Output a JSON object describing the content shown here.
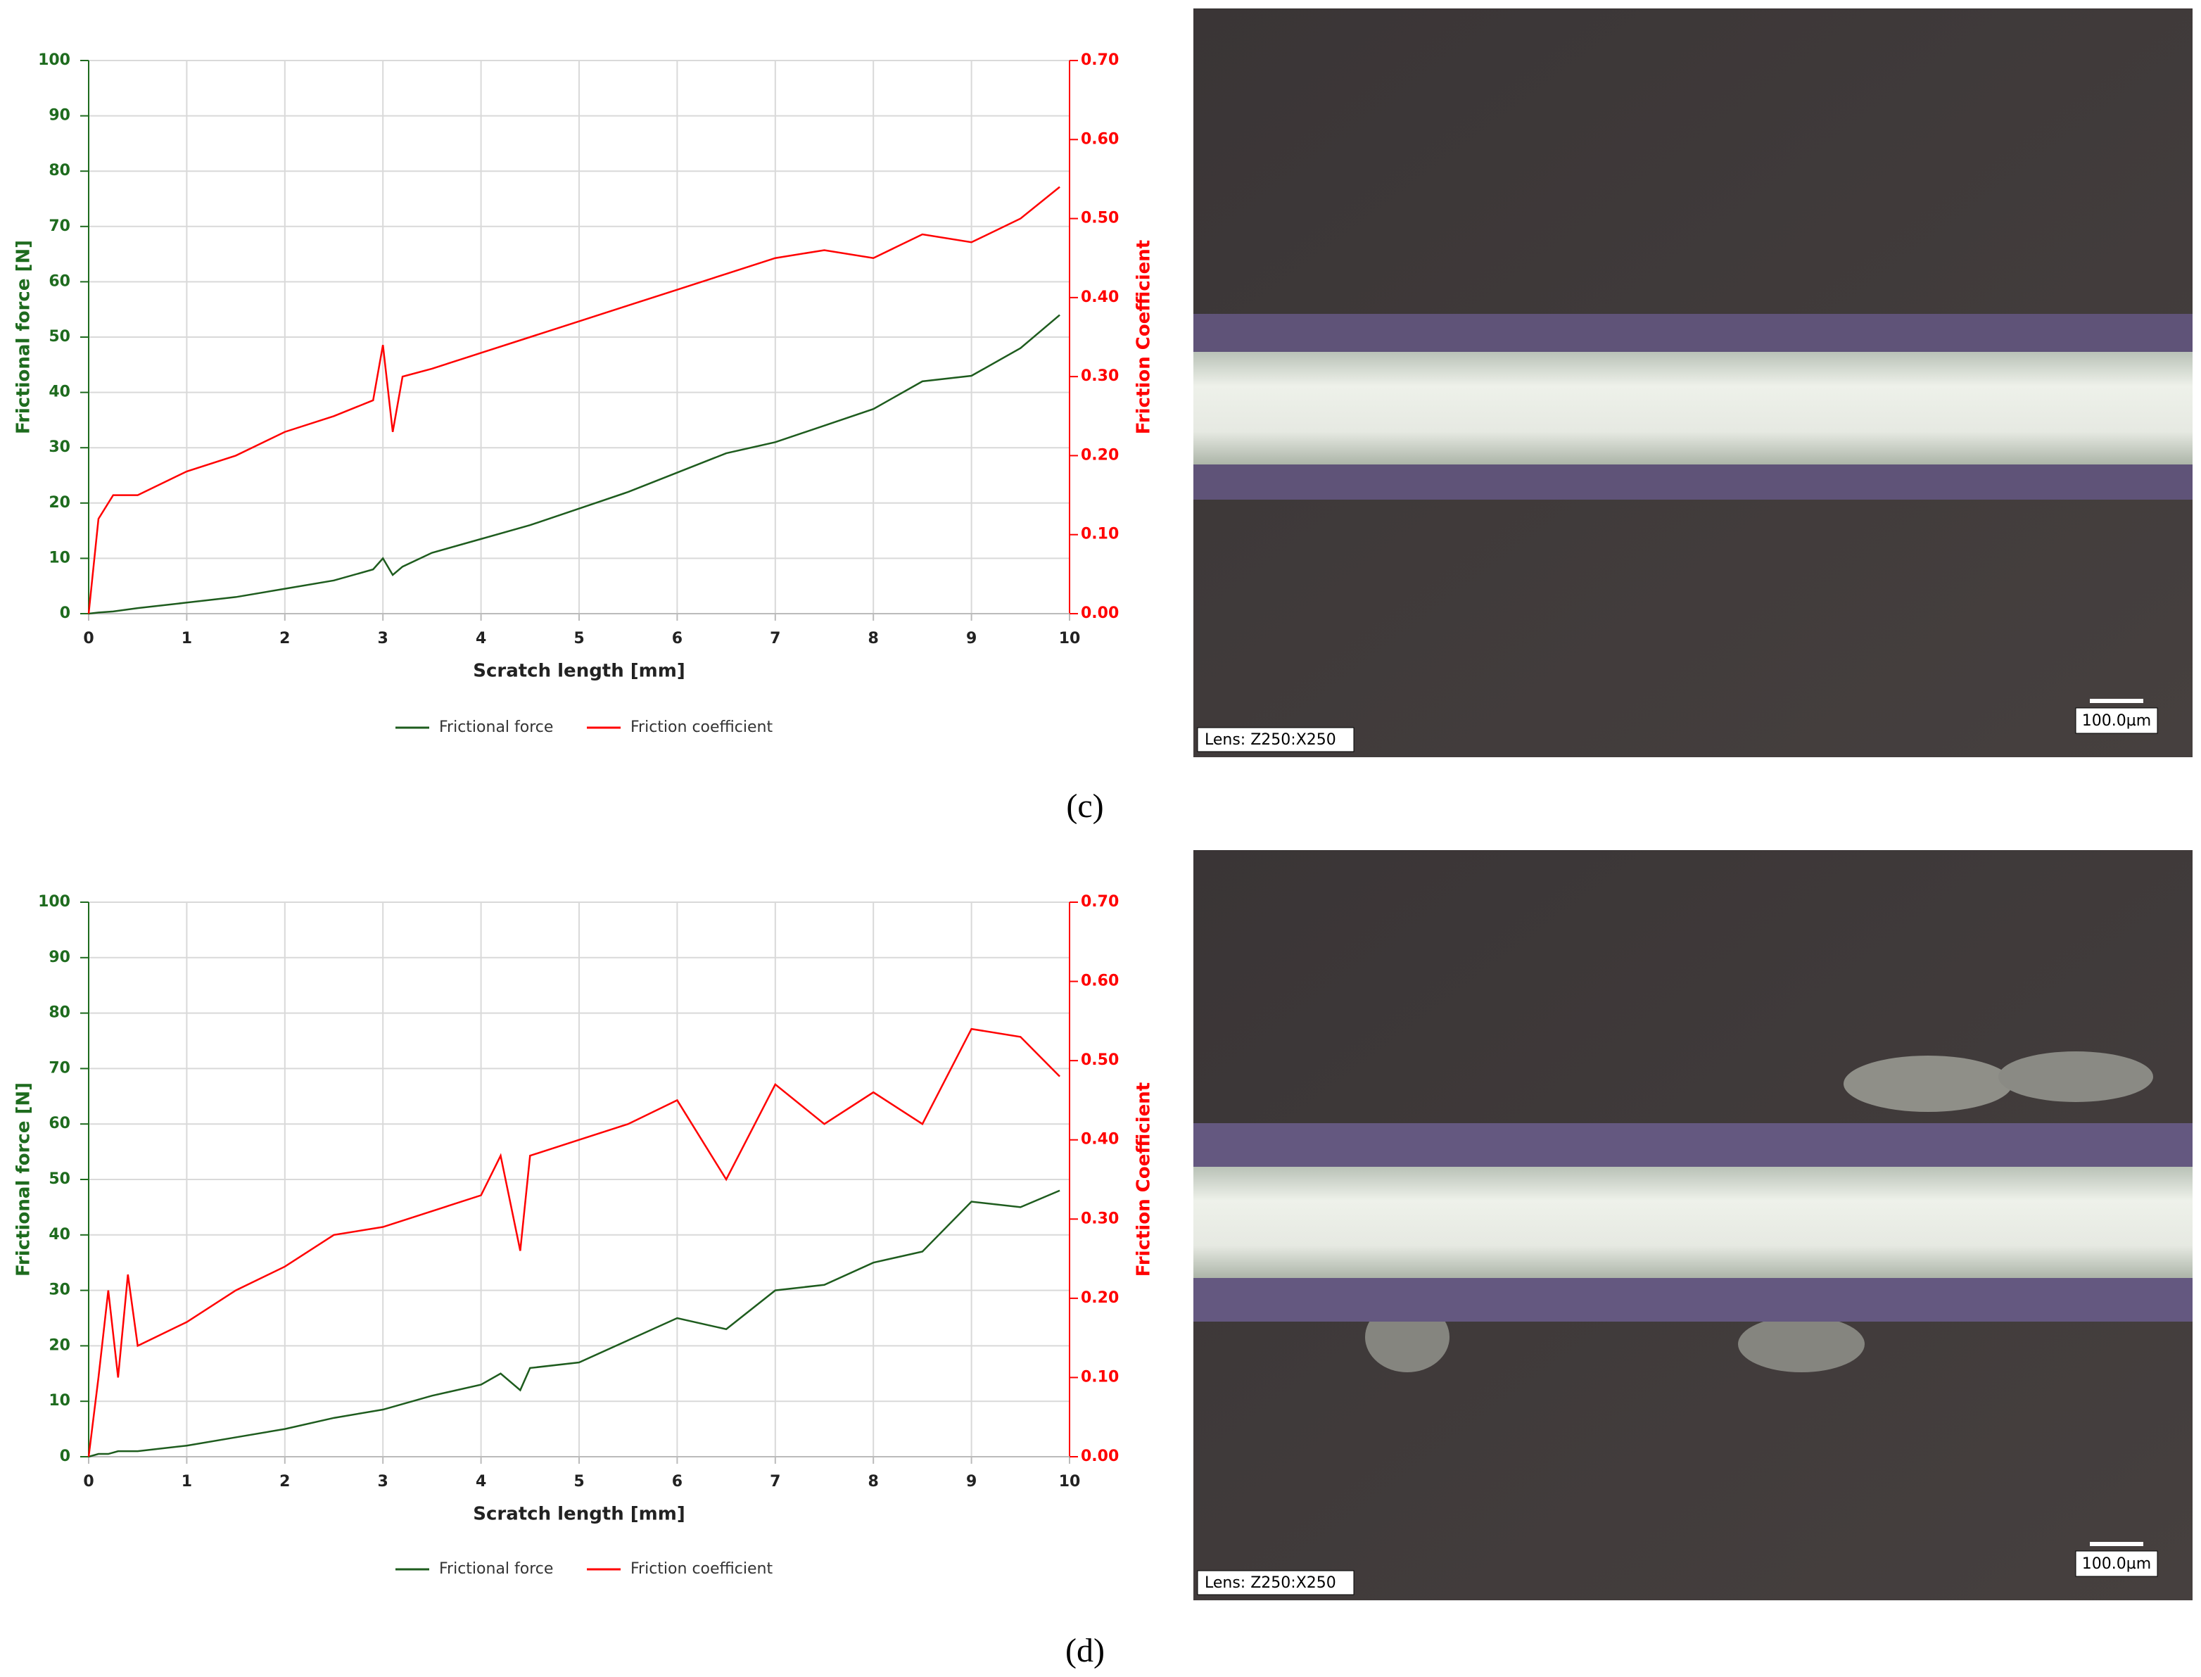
{
  "chart_data": [
    {
      "type": "line",
      "x_label": "Scratch length [mm]",
      "y_label": "Frictional force [N]",
      "y2_label": "Friction Coefficient",
      "x": [
        0,
        0.1,
        0.25,
        0.5,
        1,
        1.5,
        2,
        2.5,
        2.9,
        3,
        3.1,
        3.2,
        3.5,
        4,
        4.5,
        5,
        5.5,
        6,
        6.5,
        7,
        7.5,
        8,
        8.5,
        9,
        9.5,
        9.9
      ],
      "series": [
        {
          "name": "Frictional force",
          "color": "#1e5c1e",
          "values": [
            0,
            0.2,
            0.4,
            1,
            2,
            3,
            4.5,
            6,
            8,
            10,
            7,
            8.5,
            11,
            13.5,
            16,
            19,
            22,
            25.5,
            29,
            31,
            34,
            37,
            42,
            43,
            48,
            54
          ]
        },
        {
          "name": "Friction coefficient",
          "color": "#ff0000",
          "axis": "y2",
          "values": [
            0,
            0.12,
            0.15,
            0.15,
            0.18,
            0.2,
            0.23,
            0.25,
            0.27,
            0.34,
            0.23,
            0.3,
            0.31,
            0.33,
            0.35,
            0.37,
            0.39,
            0.41,
            0.43,
            0.45,
            0.46,
            0.45,
            0.48,
            0.47,
            0.5,
            0.54
          ]
        }
      ],
      "xlim": [
        0,
        10
      ],
      "xticks": [
        0,
        1,
        2,
        3,
        4,
        5,
        6,
        7,
        8,
        9,
        10
      ],
      "ylim": [
        0,
        100
      ],
      "yticks": [
        0,
        10,
        20,
        30,
        40,
        50,
        60,
        70,
        80,
        90,
        100
      ],
      "y2lim": [
        0,
        0.7
      ],
      "y2ticks": [
        {
          "value": 0,
          "label": "0.00"
        },
        {
          "value": 0.1,
          "label": "0.10"
        },
        {
          "value": 0.2,
          "label": "0.20"
        },
        {
          "value": 0.3,
          "label": "0.30"
        },
        {
          "value": 0.4,
          "label": "0.40"
        },
        {
          "value": 0.5,
          "label": "0.50"
        },
        {
          "value": 0.6,
          "label": "0.60"
        },
        {
          "value": 0.7,
          "label": "0.70"
        }
      ],
      "grid": true,
      "legend": "bottom"
    },
    {
      "type": "line",
      "x_label": "Scratch length [mm]",
      "y_label": "Frictional force [N]",
      "y2_label": "Friction Coefficient",
      "x": [
        0,
        0.1,
        0.2,
        0.3,
        0.4,
        0.5,
        1,
        1.5,
        2,
        2.5,
        3,
        3.5,
        4,
        4.2,
        4.4,
        4.5,
        5,
        5.5,
        6,
        6.5,
        7,
        7.5,
        8,
        8.5,
        9,
        9.5,
        9.9
      ],
      "series": [
        {
          "name": "Frictional force",
          "color": "#1e5c1e",
          "values": [
            0,
            0.5,
            0.5,
            1,
            1,
            1,
            2,
            3.5,
            5,
            7,
            8.5,
            11,
            13,
            15,
            12,
            16,
            17,
            21,
            25,
            23,
            30,
            31,
            35,
            37,
            46,
            45,
            48
          ]
        },
        {
          "name": "Friction coefficient",
          "color": "#ff0000",
          "axis": "y2",
          "values": [
            0,
            0.1,
            0.21,
            0.1,
            0.23,
            0.14,
            0.17,
            0.21,
            0.24,
            0.28,
            0.29,
            0.31,
            0.33,
            0.38,
            0.26,
            0.38,
            0.4,
            0.42,
            0.45,
            0.35,
            0.47,
            0.42,
            0.46,
            0.42,
            0.54,
            0.53,
            0.48
          ]
        }
      ],
      "xlim": [
        0,
        10
      ],
      "xticks": [
        0,
        1,
        2,
        3,
        4,
        5,
        6,
        7,
        8,
        9,
        10
      ],
      "ylim": [
        0,
        100
      ],
      "yticks": [
        0,
        10,
        20,
        30,
        40,
        50,
        60,
        70,
        80,
        90,
        100
      ],
      "y2lim": [
        0,
        0.7
      ],
      "y2ticks": [
        {
          "value": 0,
          "label": "0.00"
        },
        {
          "value": 0.1,
          "label": "0.10"
        },
        {
          "value": 0.2,
          "label": "0.20"
        },
        {
          "value": 0.3,
          "label": "0.30"
        },
        {
          "value": 0.4,
          "label": "0.40"
        },
        {
          "value": 0.5,
          "label": "0.50"
        },
        {
          "value": 0.6,
          "label": "0.60"
        },
        {
          "value": 0.7,
          "label": "0.70"
        }
      ],
      "grid": true,
      "legend": "bottom"
    }
  ],
  "panels": [
    {
      "label": "(c)",
      "lens": "Lens: Z250:X250",
      "scale_bar": "100.0µm"
    },
    {
      "label": "(d)",
      "lens": "Lens: Z250:X250",
      "scale_bar": "100.0µm"
    }
  ]
}
